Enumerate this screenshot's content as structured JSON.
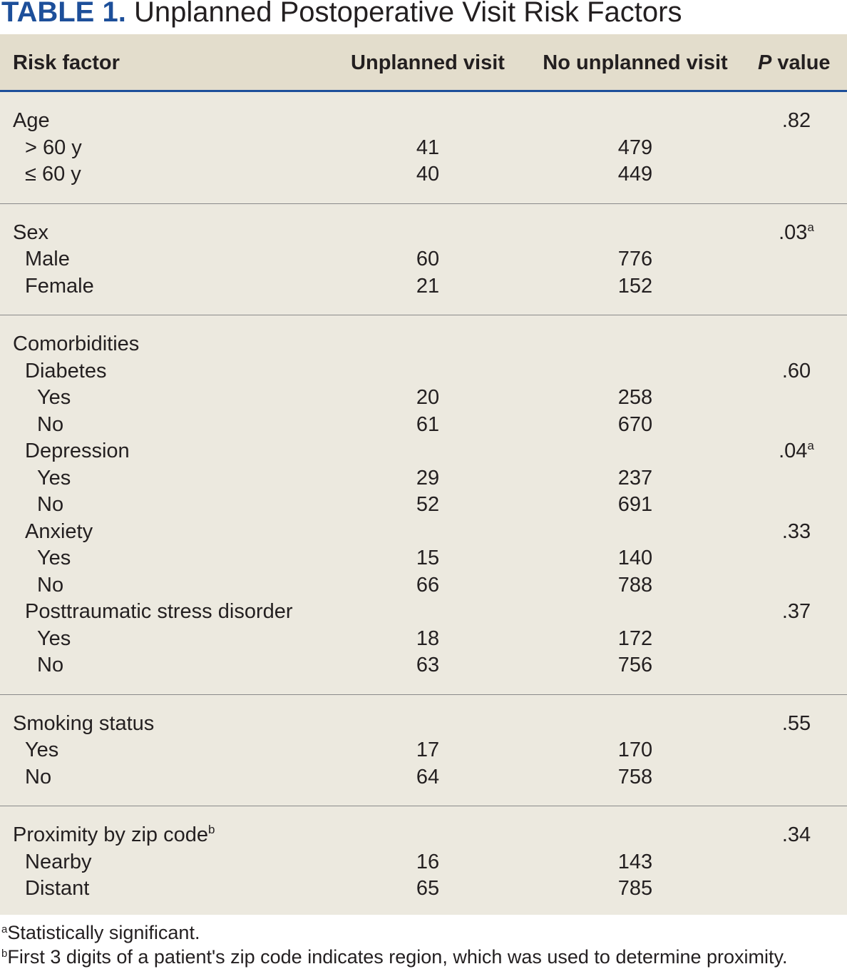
{
  "title": {
    "label": "TABLE 1.",
    "text": "Unplanned Postoperative Visit Risk Factors"
  },
  "header": {
    "columns": [
      "Risk factor",
      "Unplanned visit",
      "No unplanned visit"
    ],
    "p_value": {
      "italic": "P",
      "rest": "value"
    }
  },
  "groups": [
    {
      "label": "Age",
      "p": ".82",
      "rows": [
        {
          "label": "> 60 y",
          "values": [
            41,
            479
          ]
        },
        {
          "label": "≤ 60 y",
          "values": [
            40,
            449
          ]
        }
      ]
    },
    {
      "label": "Sex",
      "p": ".03",
      "p_note": "a",
      "rows": [
        {
          "label": "Male",
          "values": [
            60,
            776
          ]
        },
        {
          "label": "Female",
          "values": [
            21,
            152
          ]
        }
      ]
    },
    {
      "label": "Comorbidities",
      "subgroups": [
        {
          "label": "Diabetes",
          "p": ".60",
          "rows": [
            {
              "label": "Yes",
              "values": [
                20,
                258
              ]
            },
            {
              "label": "No",
              "values": [
                61,
                670
              ]
            }
          ]
        },
        {
          "label": "Depression",
          "p": ".04",
          "p_note": "a",
          "rows": [
            {
              "label": "Yes",
              "values": [
                29,
                237
              ]
            },
            {
              "label": "No",
              "values": [
                52,
                691
              ]
            }
          ]
        },
        {
          "label": "Anxiety",
          "p": ".33",
          "rows": [
            {
              "label": "Yes",
              "values": [
                15,
                140
              ]
            },
            {
              "label": "No",
              "values": [
                66,
                788
              ]
            }
          ]
        },
        {
          "label": "Posttraumatic stress disorder",
          "p": ".37",
          "rows": [
            {
              "label": "Yes",
              "values": [
                18,
                172
              ]
            },
            {
              "label": "No",
              "values": [
                63,
                756
              ]
            }
          ]
        }
      ]
    },
    {
      "label": "Smoking status",
      "p": ".55",
      "rows": [
        {
          "label": "Yes",
          "values": [
            17,
            170
          ]
        },
        {
          "label": "No",
          "values": [
            64,
            758
          ]
        }
      ]
    },
    {
      "label": "Proximity by zip code",
      "label_note": "b",
      "p": ".34",
      "rows": [
        {
          "label": "Nearby",
          "values": [
            16,
            143
          ]
        },
        {
          "label": "Distant",
          "values": [
            65,
            785
          ]
        }
      ]
    }
  ],
  "footnotes": [
    {
      "mark": "a",
      "text": "Statistically significant."
    },
    {
      "mark": "b",
      "text": "First 3 digits of a patient's zip code indicates region, which was used to determine proximity."
    }
  ]
}
